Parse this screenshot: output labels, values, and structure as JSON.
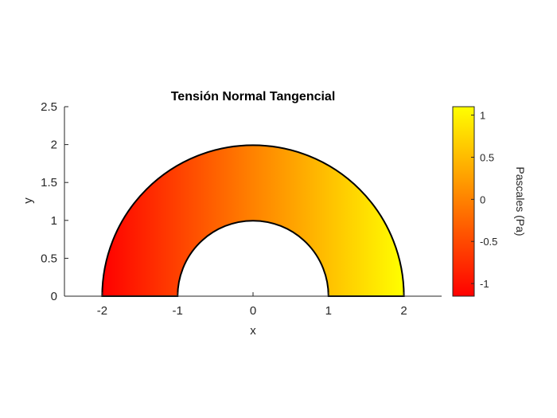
{
  "chart_data": {
    "type": "heatmap",
    "title": "Tensión Normal Tangencial",
    "xlabel": "x",
    "ylabel": "y",
    "xlim": [
      -2.5,
      2.5
    ],
    "ylim": [
      0,
      2.5
    ],
    "x_ticks": [
      -2,
      -1,
      0,
      1,
      2
    ],
    "x_tick_labels": [
      "-2",
      "-1",
      "0",
      "1",
      "2"
    ],
    "y_ticks": [
      0,
      0.5,
      1,
      1.5,
      2,
      2.5
    ],
    "y_tick_labels": [
      "0",
      "0.5",
      "1",
      "1.5",
      "2",
      "2.5"
    ],
    "domain": {
      "shape": "half-annulus",
      "inner_radius": 1,
      "outer_radius": 2,
      "center": [
        0,
        0
      ]
    },
    "colorbar": {
      "label": "Pascales (Pa)",
      "colormap": "autumn",
      "range": [
        -1.15,
        1.1
      ],
      "ticks": [
        -1,
        -0.5,
        0,
        0.5,
        1
      ],
      "tick_labels": [
        "-1",
        "-0.5",
        "0",
        "0.5",
        "1"
      ],
      "low_color": "#ff0000",
      "high_color": "#ffff00"
    },
    "field": "value varies mainly with x: about -1.15 at x=-2, about 0 at x=0, about 1.1 at x=2"
  }
}
